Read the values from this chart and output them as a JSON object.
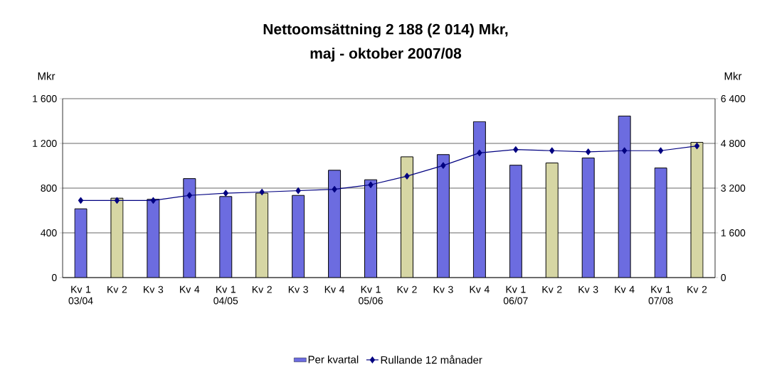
{
  "chart_data": {
    "type": "bar",
    "title": "Nettoomsättning 2 188 (2 014) Mkr,",
    "subtitle": "maj - oktober 2007/08",
    "ylabel": "Mkr",
    "y2label": "Mkr",
    "categories": [
      "Kv 1 03/04",
      "Kv 2",
      "Kv 3",
      "Kv 4",
      "Kv 1 04/05",
      "Kv 2",
      "Kv 3",
      "Kv 4",
      "Kv 1 05/06",
      "Kv 2",
      "Kv 3",
      "Kv 4",
      "Kv 1 06/07",
      "Kv 2",
      "Kv 3",
      "Kv 4",
      "Kv 1 07/08",
      "Kv 2"
    ],
    "series": [
      {
        "name": "Per kvartal",
        "colors": [
          "#6c6ce0",
          "#d6d6a4",
          "#6c6ce0",
          "#6c6ce0",
          "#6c6ce0",
          "#d6d6a4",
          "#6c6ce0",
          "#6c6ce0",
          "#6c6ce0",
          "#d6d6a4",
          "#6c6ce0",
          "#6c6ce0",
          "#6c6ce0",
          "#d6d6a4",
          "#6c6ce0",
          "#6c6ce0",
          "#6c6ce0",
          "#d6d6a4"
        ],
        "values": [
          615,
          710,
          700,
          885,
          725,
          755,
          735,
          960,
          875,
          1080,
          1100,
          1395,
          1005,
          1025,
          1070,
          1445,
          980,
          1210
        ]
      },
      {
        "name": "Rullande 12 månader",
        "type": "line",
        "axis": "y2",
        "color": "#000080",
        "values": [
          2760,
          2760,
          2760,
          2940,
          3020,
          3060,
          3110,
          3160,
          3320,
          3630,
          4010,
          4460,
          4580,
          4540,
          4500,
          4540,
          4540,
          4710
        ]
      }
    ],
    "ylim": [
      0,
      1600
    ],
    "yticks": [
      0,
      400,
      800,
      {
        "value": 1200,
        "label": "1 200"
      },
      {
        "value": 1600,
        "label": "1 600"
      }
    ],
    "y2lim": [
      0,
      6400
    ],
    "y2ticks": [
      0,
      {
        "value": 1600,
        "label": "1 600"
      },
      {
        "value": 3200,
        "label": "3 200"
      },
      {
        "value": 4800,
        "label": "4 800"
      },
      {
        "value": 6400,
        "label": "6 400"
      }
    ],
    "grid": "y",
    "legend": "bottom",
    "marker": "diamond",
    "line_style": "solid"
  }
}
